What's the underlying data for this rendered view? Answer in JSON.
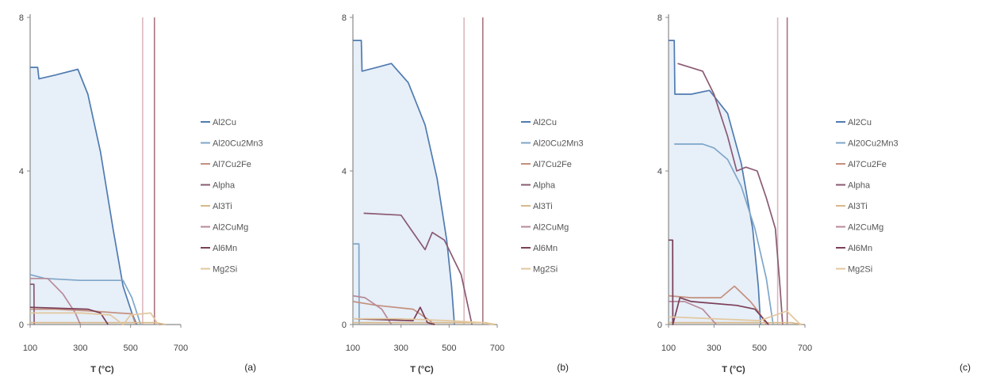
{
  "colors": {
    "Al2Cu": "#4f7bb0",
    "Al20Cu2Mn3": "#7ea6c9",
    "Al7Cu2Fe": "#c4907e",
    "Alpha": "#8a5a72",
    "Al3Ti": "#d8b889",
    "Al2CuMg": "#b78a98",
    "Al6Mn": "#7a3e58",
    "Mg2Si": "#e2c79d",
    "vline_a": "#d9b8bf",
    "vline_b": "#a9757f",
    "fill": "#dfeaf6",
    "axis": "#8a8a8a"
  },
  "chart_data": [
    {
      "type": "line",
      "panel_label": "(a)",
      "xlabel": "T (°C)",
      "ylabel": "",
      "xlim": [
        100,
        700
      ],
      "ylim": [
        0,
        8
      ],
      "x_ticks": [
        "100",
        "300",
        "500",
        "700"
      ],
      "y_ticks": [
        "0",
        "4",
        "8"
      ],
      "legend": [
        "Al2Cu",
        "Al20Cu2Mn3",
        "Al7Cu2Fe",
        "Alpha",
        "Al3Ti",
        "Al2CuMg",
        "Al6Mn",
        "Mg2Si"
      ],
      "vlines": [
        548,
        595
      ],
      "series": [
        {
          "name": "Al2Cu",
          "points": [
            [
              100,
              6.7
            ],
            [
              130,
              6.7
            ],
            [
              135,
              6.4
            ],
            [
              200,
              6.5
            ],
            [
              290,
              6.65
            ],
            [
              330,
              6.0
            ],
            [
              380,
              4.5
            ],
            [
              430,
              2.5
            ],
            [
              470,
              1.0
            ],
            [
              505,
              0.3
            ],
            [
              525,
              0.0
            ]
          ]
        },
        {
          "name": "Al20Cu2Mn3",
          "points": [
            [
              100,
              1.3
            ],
            [
              160,
              1.2
            ],
            [
              300,
              1.15
            ],
            [
              470,
              1.15
            ],
            [
              505,
              0.7
            ],
            [
              530,
              0.2
            ],
            [
              540,
              0.0
            ]
          ]
        },
        {
          "name": "Al7Cu2Fe",
          "points": [
            [
              100,
              0.4
            ],
            [
              200,
              0.4
            ],
            [
              350,
              0.35
            ],
            [
              450,
              0.3
            ],
            [
              505,
              0.28
            ],
            [
              520,
              0.0
            ]
          ]
        },
        {
          "name": "Alpha",
          "points": [
            [
              100,
              1.05
            ],
            [
              115,
              1.05
            ],
            [
              116,
              0.0
            ]
          ]
        },
        {
          "name": "Al3Ti",
          "points": [
            [
              100,
              0.05
            ],
            [
              600,
              0.05
            ],
            [
              640,
              0.0
            ]
          ]
        },
        {
          "name": "Al2CuMg",
          "points": [
            [
              100,
              1.2
            ],
            [
              170,
              1.2
            ],
            [
              230,
              0.8
            ],
            [
              280,
              0.3
            ],
            [
              300,
              0.0
            ]
          ]
        },
        {
          "name": "Al6Mn",
          "points": [
            [
              100,
              0.45
            ],
            [
              330,
              0.4
            ],
            [
              380,
              0.3
            ],
            [
              410,
              0.0
            ]
          ]
        },
        {
          "name": "Mg2Si",
          "points": [
            [
              100,
              0.3
            ],
            [
              300,
              0.3
            ],
            [
              420,
              0.25
            ],
            [
              470,
              0.0
            ],
            [
              500,
              0.25
            ],
            [
              580,
              0.3
            ],
            [
              610,
              0.0
            ]
          ]
        }
      ]
    },
    {
      "type": "line",
      "panel_label": "(b)",
      "xlabel": "T (°C)",
      "ylabel": "",
      "xlim": [
        100,
        700
      ],
      "ylim": [
        0,
        8
      ],
      "x_ticks": [
        "100",
        "300",
        "500",
        "700"
      ],
      "y_ticks": [
        "0",
        "4",
        "8"
      ],
      "legend": [
        "Al2Cu",
        "Al20Cu2Mn3",
        "Al7Cu2Fe",
        "Alpha",
        "Al3Ti",
        "Al2CuMg",
        "Al6Mn",
        "Mg2Si"
      ],
      "vlines": [
        562,
        640
      ],
      "series": [
        {
          "name": "Al2Cu",
          "points": [
            [
              100,
              7.4
            ],
            [
              135,
              7.4
            ],
            [
              138,
              6.6
            ],
            [
              200,
              6.7
            ],
            [
              260,
              6.8
            ],
            [
              330,
              6.3
            ],
            [
              400,
              5.2
            ],
            [
              450,
              3.8
            ],
            [
              490,
              2.2
            ],
            [
              510,
              1.0
            ],
            [
              522,
              0.0
            ]
          ]
        },
        {
          "name": "Al20Cu2Mn3",
          "points": [
            [
              100,
              2.1
            ],
            [
              125,
              2.1
            ],
            [
              126,
              0.0
            ]
          ]
        },
        {
          "name": "Al7Cu2Fe",
          "points": [
            [
              100,
              0.6
            ],
            [
              200,
              0.5
            ],
            [
              350,
              0.4
            ],
            [
              420,
              0.1
            ],
            [
              440,
              0.0
            ]
          ]
        },
        {
          "name": "Alpha",
          "points": [
            [
              145,
              2.9
            ],
            [
              300,
              2.85
            ],
            [
              350,
              2.4
            ],
            [
              400,
              1.95
            ],
            [
              430,
              2.4
            ],
            [
              480,
              2.2
            ],
            [
              550,
              1.3
            ],
            [
              595,
              0.0
            ]
          ]
        },
        {
          "name": "Al3Ti",
          "points": [
            [
              100,
              0.05
            ],
            [
              650,
              0.05
            ],
            [
              690,
              0.0
            ]
          ]
        },
        {
          "name": "Al2CuMg",
          "points": [
            [
              100,
              0.75
            ],
            [
              150,
              0.7
            ],
            [
              220,
              0.4
            ],
            [
              260,
              0.0
            ]
          ]
        },
        {
          "name": "Al6Mn",
          "points": [
            [
              100,
              0.15
            ],
            [
              350,
              0.1
            ],
            [
              380,
              0.45
            ],
            [
              410,
              0.05
            ],
            [
              440,
              0.0
            ]
          ]
        },
        {
          "name": "Mg2Si",
          "points": [
            [
              100,
              0.15
            ],
            [
              300,
              0.15
            ],
            [
              500,
              0.1
            ],
            [
              640,
              0.05
            ],
            [
              680,
              0.0
            ]
          ]
        }
      ]
    },
    {
      "type": "line",
      "panel_label": "(c)",
      "xlabel": "T (°C)",
      "ylabel": "",
      "xlim": [
        100,
        700
      ],
      "ylim": [
        0,
        8
      ],
      "x_ticks": [
        "100",
        "300",
        "500",
        "700"
      ],
      "y_ticks": [
        "0",
        "4",
        "8"
      ],
      "legend": [
        "Al2Cu",
        "Al20Cu2Mn3",
        "Al7Cu2Fe",
        "Alpha",
        "Al3Ti",
        "Al2CuMg",
        "Al6Mn",
        "Mg2Si"
      ],
      "vlines": [
        580,
        622
      ],
      "series": [
        {
          "name": "Al2Cu",
          "points": [
            [
              100,
              7.4
            ],
            [
              125,
              7.4
            ],
            [
              128,
              6.0
            ],
            [
              200,
              6.0
            ],
            [
              280,
              6.1
            ],
            [
              360,
              5.5
            ],
            [
              420,
              4.2
            ],
            [
              470,
              2.5
            ],
            [
              495,
              1.0
            ],
            [
              505,
              0.0
            ]
          ]
        },
        {
          "name": "Al20Cu2Mn3",
          "points": [
            [
              125,
              4.7
            ],
            [
              250,
              4.7
            ],
            [
              300,
              4.6
            ],
            [
              360,
              4.3
            ],
            [
              420,
              3.6
            ],
            [
              480,
              2.5
            ],
            [
              530,
              1.2
            ],
            [
              560,
              0.0
            ]
          ]
        },
        {
          "name": "Al7Cu2Fe",
          "points": [
            [
              100,
              0.75
            ],
            [
              200,
              0.7
            ],
            [
              330,
              0.7
            ],
            [
              390,
              1.0
            ],
            [
              460,
              0.6
            ],
            [
              500,
              0.3
            ],
            [
              530,
              0.0
            ]
          ]
        },
        {
          "name": "Alpha",
          "points": [
            [
              140,
              6.8
            ],
            [
              250,
              6.6
            ],
            [
              300,
              6.0
            ],
            [
              360,
              4.9
            ],
            [
              400,
              4.0
            ],
            [
              440,
              4.1
            ],
            [
              490,
              4.0
            ],
            [
              530,
              3.3
            ],
            [
              570,
              2.5
            ],
            [
              590,
              1.0
            ],
            [
              602,
              0.0
            ]
          ]
        },
        {
          "name": "Al3Ti",
          "points": [
            [
              100,
              0.05
            ],
            [
              640,
              0.05
            ],
            [
              690,
              0.0
            ]
          ]
        },
        {
          "name": "Al2CuMg",
          "points": [
            [
              100,
              0.6
            ],
            [
              170,
              0.6
            ],
            [
              250,
              0.4
            ],
            [
              310,
              0.0
            ]
          ]
        },
        {
          "name": "Al6Mn",
          "points": [
            [
              100,
              2.2
            ],
            [
              118,
              2.2
            ],
            [
              119,
              0.0
            ],
            [
              150,
              0.7
            ],
            [
              200,
              0.6
            ],
            [
              400,
              0.5
            ],
            [
              480,
              0.4
            ],
            [
              540,
              0.0
            ]
          ]
        },
        {
          "name": "Mg2Si",
          "points": [
            [
              100,
              0.2
            ],
            [
              300,
              0.15
            ],
            [
              500,
              0.1
            ],
            [
              620,
              0.35
            ],
            [
              680,
              0.0
            ]
          ]
        }
      ]
    }
  ]
}
